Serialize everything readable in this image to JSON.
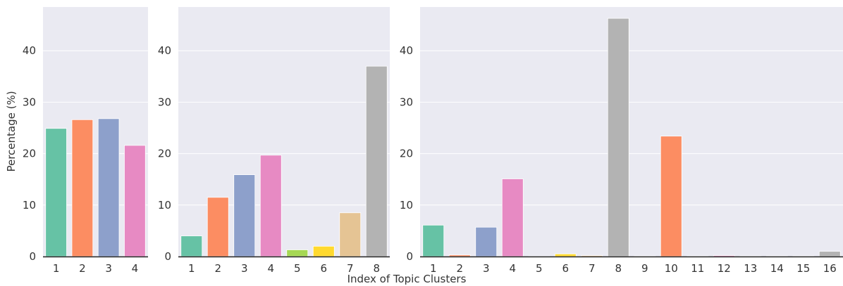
{
  "xlabel": "Index of Topic Clusters",
  "ylabel": "Percentage (%)",
  "colors": {
    "background": "#EAEAF2",
    "grid": "#FFFFFF",
    "axis": "#222222",
    "palette": [
      "#66C2A5",
      "#FC8D62",
      "#8DA0CB",
      "#E78AC3",
      "#A6D854",
      "#FFD92F",
      "#E5C494",
      "#B3B3B3"
    ]
  },
  "chart_data": [
    {
      "type": "bar",
      "categories": [
        "1",
        "2",
        "3",
        "4"
      ],
      "values": [
        24.9,
        26.6,
        26.8,
        21.6
      ],
      "ylim": [
        0,
        48.5
      ],
      "yticks": [
        0,
        10,
        20,
        30,
        40
      ],
      "grid": true,
      "ylabel": "Percentage (%)",
      "xlabel": ""
    },
    {
      "type": "bar",
      "categories": [
        "1",
        "2",
        "3",
        "4",
        "5",
        "6",
        "7",
        "8"
      ],
      "values": [
        4.0,
        11.5,
        15.9,
        19.7,
        1.3,
        2.0,
        8.5,
        37.0
      ],
      "ylim": [
        0,
        48.5
      ],
      "yticks": [
        0,
        10,
        20,
        30,
        40
      ],
      "grid": true,
      "ylabel": "",
      "xlabel": "Index of Topic Clusters"
    },
    {
      "type": "bar",
      "categories": [
        "1",
        "2",
        "3",
        "4",
        "5",
        "6",
        "7",
        "8",
        "9",
        "10",
        "11",
        "12",
        "13",
        "14",
        "15",
        "16"
      ],
      "values": [
        6.1,
        0.3,
        5.7,
        15.1,
        0.05,
        0.5,
        0.2,
        46.3,
        0.1,
        23.4,
        0.1,
        0.2,
        0.1,
        0.1,
        0.1,
        1.0
      ],
      "ylim": [
        0,
        48.5
      ],
      "yticks": [
        0,
        10,
        20,
        30,
        40
      ],
      "grid": true,
      "ylabel": "",
      "xlabel": ""
    }
  ]
}
